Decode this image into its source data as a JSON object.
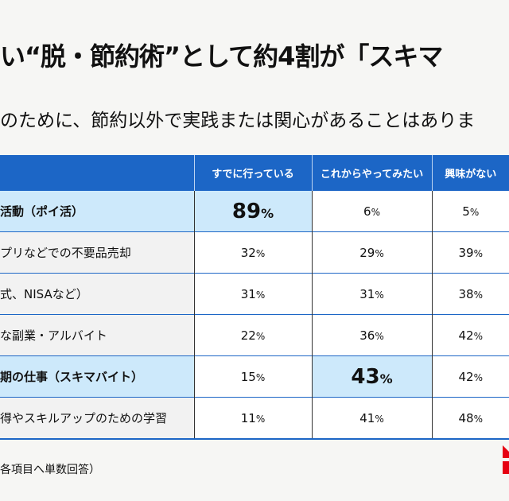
{
  "title": "い“脱・節約術”として約4割が「スキマ",
  "subtitle": "のために、節約以外で実践または関心があることはありま",
  "table": {
    "columns": [
      "",
      "すでに行っている",
      "これからやってみたい",
      "興味がない"
    ],
    "rows": [
      {
        "label": "活動（ポイ活）",
        "values": [
          "89",
          "6",
          "5"
        ],
        "highlight_row": true,
        "highlight_col": 0
      },
      {
        "label": "プリなどでの不要品売却",
        "values": [
          "32",
          "29",
          "39"
        ],
        "highlight_row": false,
        "highlight_col": -1
      },
      {
        "label": "式、NISAなど）",
        "values": [
          "31",
          "31",
          "38"
        ],
        "highlight_row": false,
        "highlight_col": -1
      },
      {
        "label": "な副業・アルバイト",
        "values": [
          "22",
          "36",
          "42"
        ],
        "highlight_row": false,
        "highlight_col": -1
      },
      {
        "label": "期の仕事（スキマバイト）",
        "values": [
          "15",
          "43",
          "42"
        ],
        "highlight_row": true,
        "highlight_col": 1
      },
      {
        "label": "得やスキルアップのための学習",
        "values": [
          "11",
          "41",
          "48"
        ],
        "highlight_row": false,
        "highlight_col": -1
      }
    ],
    "unit": "%"
  },
  "footnote": "各項目へ単数回答）",
  "colors": {
    "header": "#1c66c6",
    "highlight": "#cde9fb",
    "logo": "#e60012"
  }
}
